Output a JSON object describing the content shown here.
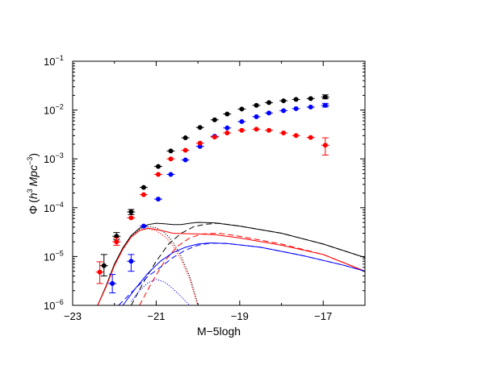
{
  "chart_data": {
    "type": "scatter",
    "xlabel": "M−5logh",
    "ylabel": {
      "phi": "Φ",
      "open": "(",
      "h_sym": "h",
      "h_exp": "3",
      "mpc_sym": "Mpc",
      "mpc_exp": "−3",
      "close": ")"
    },
    "x_range": [
      -23,
      -16
    ],
    "y_range": [
      1e-06,
      0.1
    ],
    "y_scale": "log",
    "x_tick_labels": [
      {
        "value": -23,
        "label": "−23"
      },
      {
        "value": -21,
        "label": "−21"
      },
      {
        "value": -19,
        "label": "−19"
      },
      {
        "value": -17,
        "label": "−17"
      }
    ],
    "y_tick_labels": [
      {
        "value": 1e-06,
        "base": "10",
        "exp": "−6"
      },
      {
        "value": 1e-05,
        "base": "10",
        "exp": "−5"
      },
      {
        "value": 0.0001,
        "base": "10",
        "exp": "−4"
      },
      {
        "value": 0.001,
        "base": "10",
        "exp": "−3"
      },
      {
        "value": 0.01,
        "base": "10",
        "exp": "−2"
      },
      {
        "value": 0.1,
        "base": "10",
        "exp": "−1"
      }
    ],
    "grid": false,
    "legend": "none",
    "points": [
      {
        "color": "#000000",
        "data": [
          {
            "x": -22.25,
            "y": 6.5e-06,
            "yerr_lo": 2.5e-06,
            "yerr_hi": 4.5e-06
          },
          {
            "x": -21.95,
            "y": 2.6e-05,
            "yerr_lo": 4e-06,
            "yerr_hi": 5e-06
          },
          {
            "x": -21.6,
            "y": 8.2e-05,
            "yerr_lo": 1e-05,
            "yerr_hi": 1e-05
          },
          {
            "x": -21.3,
            "y": 0.00026
          },
          {
            "x": -20.95,
            "y": 0.0007
          },
          {
            "x": -20.65,
            "y": 0.00145
          },
          {
            "x": -20.3,
            "y": 0.0027
          },
          {
            "x": -19.95,
            "y": 0.0044
          },
          {
            "x": -19.6,
            "y": 0.0063
          },
          {
            "x": -19.3,
            "y": 0.0083
          },
          {
            "x": -18.95,
            "y": 0.0105
          },
          {
            "x": -18.6,
            "y": 0.0125
          },
          {
            "x": -18.3,
            "y": 0.0142
          },
          {
            "x": -17.95,
            "y": 0.0155
          },
          {
            "x": -17.65,
            "y": 0.0165
          },
          {
            "x": -17.3,
            "y": 0.0172
          },
          {
            "x": -16.95,
            "y": 0.0185,
            "yerr_lo": 0.0015,
            "yerr_hi": 0.002
          }
        ]
      },
      {
        "color": "#0000ff",
        "data": [
          {
            "x": -22.05,
            "y": 2.8e-06,
            "yerr_lo": 1e-06,
            "yerr_hi": 1.5e-06
          },
          {
            "x": -21.6,
            "y": 8e-06,
            "yerr_lo": 3e-06,
            "yerr_hi": 3e-06
          },
          {
            "x": -21.3,
            "y": 4.2e-05
          },
          {
            "x": -20.95,
            "y": 0.00015
          },
          {
            "x": -20.65,
            "y": 0.00048
          },
          {
            "x": -20.3,
            "y": 0.00095
          },
          {
            "x": -19.95,
            "y": 0.0018
          },
          {
            "x": -19.6,
            "y": 0.0029
          },
          {
            "x": -19.3,
            "y": 0.0043
          },
          {
            "x": -18.95,
            "y": 0.0058
          },
          {
            "x": -18.6,
            "y": 0.0073
          },
          {
            "x": -18.3,
            "y": 0.0087
          },
          {
            "x": -17.95,
            "y": 0.0097
          },
          {
            "x": -17.65,
            "y": 0.0107
          },
          {
            "x": -17.3,
            "y": 0.0115
          },
          {
            "x": -16.95,
            "y": 0.0125,
            "yerr_lo": 0.001,
            "yerr_hi": 0.0012
          }
        ]
      },
      {
        "color": "#ff0000",
        "data": [
          {
            "x": -22.35,
            "y": 4.8e-06,
            "yerr_lo": 2e-06,
            "yerr_hi": 3e-06
          },
          {
            "x": -21.95,
            "y": 2e-05,
            "yerr_lo": 3e-06,
            "yerr_hi": 4e-06
          },
          {
            "x": -21.6,
            "y": 6.2e-05
          },
          {
            "x": -21.3,
            "y": 0.000185
          },
          {
            "x": -20.95,
            "y": 0.00048
          },
          {
            "x": -20.65,
            "y": 0.001
          },
          {
            "x": -20.3,
            "y": 0.0015
          },
          {
            "x": -19.95,
            "y": 0.0021
          },
          {
            "x": -19.6,
            "y": 0.0028
          },
          {
            "x": -19.3,
            "y": 0.0034
          },
          {
            "x": -18.95,
            "y": 0.00385
          },
          {
            "x": -18.6,
            "y": 0.00405
          },
          {
            "x": -18.3,
            "y": 0.00385
          },
          {
            "x": -17.95,
            "y": 0.0034
          },
          {
            "x": -17.65,
            "y": 0.003
          },
          {
            "x": -17.3,
            "y": 0.00275
          },
          {
            "x": -16.95,
            "y": 0.0019,
            "yerr_lo": 0.0007,
            "yerr_hi": 0.0008
          }
        ]
      }
    ],
    "curves": [
      {
        "color": "#000000",
        "dash": "solid",
        "points": [
          [
            -22.4,
            1e-06
          ],
          [
            -22.2,
            2.5e-06
          ],
          [
            -22.0,
            7e-06
          ],
          [
            -21.8,
            1.5e-05
          ],
          [
            -21.6,
            2.7e-05
          ],
          [
            -21.4,
            3.8e-05
          ],
          [
            -21.2,
            4.5e-05
          ],
          [
            -21.0,
            4.8e-05
          ],
          [
            -20.8,
            4.7e-05
          ],
          [
            -20.6,
            4.5e-05
          ],
          [
            -20.4,
            4.5e-05
          ],
          [
            -20.2,
            4.8e-05
          ],
          [
            -20.0,
            5e-05
          ],
          [
            -19.6,
            4.9e-05
          ],
          [
            -19.0,
            4.2e-05
          ],
          [
            -18.0,
            3e-05
          ],
          [
            -17.0,
            1.8e-05
          ],
          [
            -16.0,
            9.5e-06
          ]
        ]
      },
      {
        "color": "#000000",
        "dash": "dotted",
        "points": [
          [
            -22.4,
            1e-06
          ],
          [
            -22.2,
            2.5e-06
          ],
          [
            -22.0,
            7e-06
          ],
          [
            -21.8,
            1.5e-05
          ],
          [
            -21.6,
            2.6e-05
          ],
          [
            -21.4,
            3.6e-05
          ],
          [
            -21.2,
            4.1e-05
          ],
          [
            -21.0,
            3.9e-05
          ],
          [
            -20.8,
            3.1e-05
          ],
          [
            -20.6,
            2e-05
          ],
          [
            -20.4,
            1e-05
          ],
          [
            -20.2,
            4e-06
          ],
          [
            -20.05,
            1.5e-06
          ],
          [
            -20.0,
            1e-06
          ]
        ]
      },
      {
        "color": "#000000",
        "dash": "dashed",
        "points": [
          [
            -21.6,
            1e-06
          ],
          [
            -21.3,
            3e-06
          ],
          [
            -21.0,
            8e-06
          ],
          [
            -20.7,
            1.8e-05
          ],
          [
            -20.4,
            3e-05
          ],
          [
            -20.1,
            4.1e-05
          ],
          [
            -19.8,
            4.6e-05
          ],
          [
            -19.5,
            4.8e-05
          ],
          [
            -19.0,
            4.2e-05
          ],
          [
            -18.0,
            3e-05
          ],
          [
            -17.0,
            1.8e-05
          ],
          [
            -16.0,
            9.5e-06
          ]
        ]
      },
      {
        "color": "#ff0000",
        "dash": "solid",
        "points": [
          [
            -22.4,
            1e-06
          ],
          [
            -22.2,
            2.4e-06
          ],
          [
            -22.0,
            6.5e-06
          ],
          [
            -21.8,
            1.4e-05
          ],
          [
            -21.6,
            2.5e-05
          ],
          [
            -21.4,
            3.4e-05
          ],
          [
            -21.2,
            3.8e-05
          ],
          [
            -21.0,
            3.6e-05
          ],
          [
            -20.8,
            3.3e-05
          ],
          [
            -20.6,
            3e-05
          ],
          [
            -20.4,
            2.95e-05
          ],
          [
            -20.0,
            2.9e-05
          ],
          [
            -19.6,
            2.8e-05
          ],
          [
            -19.0,
            2.4e-05
          ],
          [
            -18.0,
            1.7e-05
          ],
          [
            -17.0,
            1.1e-05
          ],
          [
            -16.0,
            5e-06
          ]
        ]
      },
      {
        "color": "#ff0000",
        "dash": "dotted",
        "points": [
          [
            -22.4,
            1e-06
          ],
          [
            -22.2,
            2.4e-06
          ],
          [
            -22.0,
            6.5e-06
          ],
          [
            -21.8,
            1.4e-05
          ],
          [
            -21.6,
            2.5e-05
          ],
          [
            -21.4,
            3.4e-05
          ],
          [
            -21.2,
            3.7e-05
          ],
          [
            -21.0,
            3.4e-05
          ],
          [
            -20.8,
            2.6e-05
          ],
          [
            -20.6,
            1.7e-05
          ],
          [
            -20.4,
            8.5e-06
          ],
          [
            -20.2,
            3.5e-06
          ],
          [
            -20.05,
            1.3e-06
          ],
          [
            -20.0,
            1e-06
          ]
        ]
      },
      {
        "color": "#ff0000",
        "dash": "dashed",
        "points": [
          [
            -21.4,
            1e-06
          ],
          [
            -21.1,
            3e-06
          ],
          [
            -20.8,
            8e-06
          ],
          [
            -20.5,
            1.6e-05
          ],
          [
            -20.2,
            2.4e-05
          ],
          [
            -19.9,
            2.9e-05
          ],
          [
            -19.5,
            3e-05
          ],
          [
            -19.0,
            2.6e-05
          ],
          [
            -18.0,
            1.8e-05
          ],
          [
            -17.0,
            1.1e-05
          ],
          [
            -16.0,
            5e-06
          ]
        ]
      },
      {
        "color": "#0000ff",
        "dash": "solid",
        "points": [
          [
            -21.8,
            1e-06
          ],
          [
            -21.5,
            2.2e-06
          ],
          [
            -21.2,
            4.5e-06
          ],
          [
            -20.9,
            8e-06
          ],
          [
            -20.6,
            1.2e-05
          ],
          [
            -20.3,
            1.55e-05
          ],
          [
            -20.0,
            1.8e-05
          ],
          [
            -19.7,
            1.9e-05
          ],
          [
            -19.3,
            1.85e-05
          ],
          [
            -18.5,
            1.55e-05
          ],
          [
            -17.5,
            1.05e-05
          ],
          [
            -16.5,
            6.6e-06
          ],
          [
            -16.0,
            5e-06
          ]
        ]
      },
      {
        "color": "#0000ff",
        "dash": "dotted",
        "points": [
          [
            -21.6,
            1.2e-06
          ],
          [
            -21.4,
            2e-06
          ],
          [
            -21.2,
            2.9e-06
          ],
          [
            -21.0,
            3.4e-06
          ],
          [
            -20.8,
            3e-06
          ],
          [
            -20.6,
            2.2e-06
          ],
          [
            -20.4,
            1.5e-06
          ],
          [
            -20.2,
            1e-06
          ]
        ]
      },
      {
        "color": "#0000ff",
        "dash": "dashed",
        "points": [
          [
            -21.9,
            1e-06
          ],
          [
            -21.5,
            2.2e-06
          ],
          [
            -21.2,
            3.9e-06
          ],
          [
            -20.9,
            6e-06
          ],
          [
            -20.6,
            9.5e-06
          ],
          [
            -20.3,
            1.35e-05
          ],
          [
            -20.0,
            1.7e-05
          ],
          [
            -19.7,
            1.88e-05
          ],
          [
            -19.3,
            1.85e-05
          ],
          [
            -18.5,
            1.55e-05
          ],
          [
            -17.5,
            1.05e-05
          ],
          [
            -16.5,
            6.6e-06
          ],
          [
            -16.0,
            5e-06
          ]
        ]
      }
    ]
  }
}
